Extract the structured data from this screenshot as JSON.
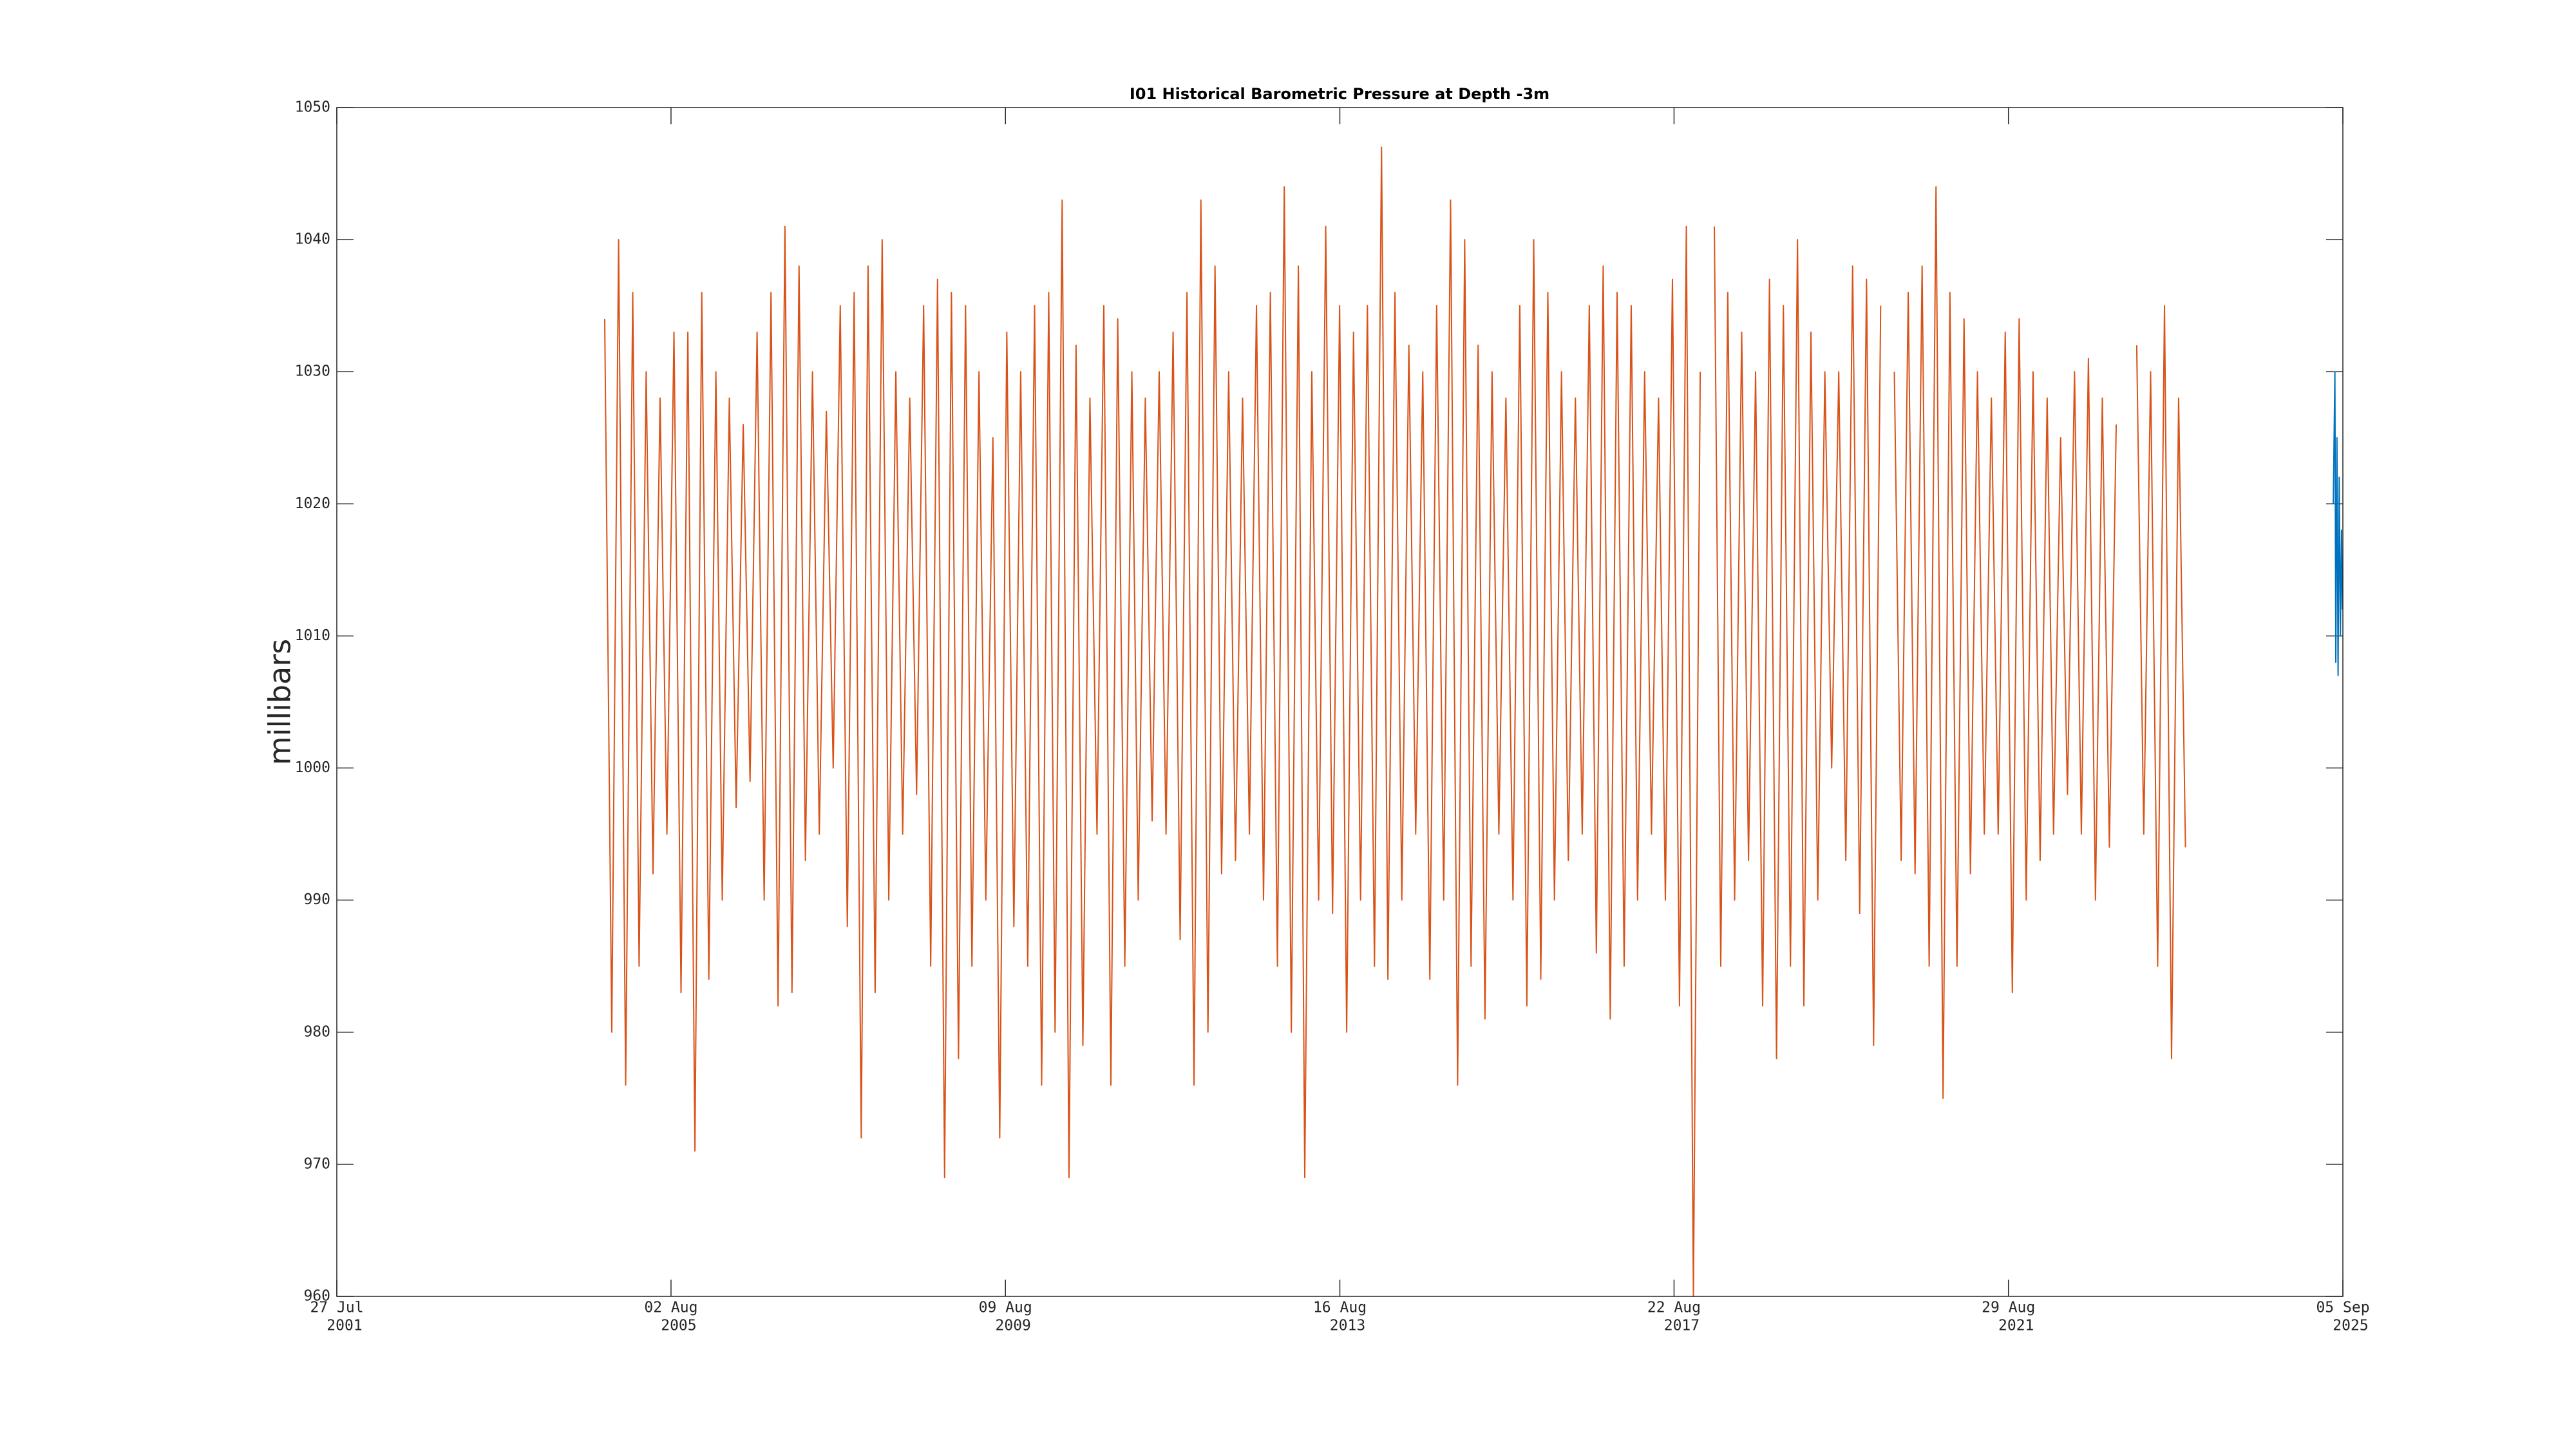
{
  "chart_data": {
    "type": "line",
    "title": "I01 Historical Barometric Pressure at Depth -3m",
    "y_label": "millibars",
    "xlim": [
      "2001-07-27",
      "2025-09-05"
    ],
    "xticks": [
      {
        "value": "2001-07-27",
        "label": [
          "27 Jul",
          "2001"
        ]
      },
      {
        "value": "2005-08-02",
        "label": [
          "02 Aug",
          "2005"
        ]
      },
      {
        "value": "2009-08-09",
        "label": [
          "09 Aug",
          "2009"
        ]
      },
      {
        "value": "2013-08-16",
        "label": [
          "16 Aug",
          "2013"
        ]
      },
      {
        "value": "2017-08-22",
        "label": [
          "22 Aug",
          "2017"
        ]
      },
      {
        "value": "2021-08-29",
        "label": [
          "29 Aug",
          "2021"
        ]
      },
      {
        "value": "2025-09-05",
        "label": [
          "05 Sep",
          "2025"
        ]
      }
    ],
    "ylim": [
      960,
      1050
    ],
    "yticks": [
      960,
      970,
      980,
      990,
      1000,
      1010,
      1020,
      1030,
      1040,
      1050
    ],
    "grid": false,
    "series": [
      {
        "color": "#d95319",
        "x": [
          "2004-10-15",
          "2004-11-15",
          "2004-12-15",
          "2005-01-15",
          "2005-02-15",
          "2005-03-15",
          "2005-04-15",
          "2005-05-15",
          "2005-06-15",
          "2005-07-15",
          "2005-08-15",
          "2005-09-15",
          "2005-10-15",
          "2005-11-15",
          "2005-12-15",
          "2006-01-15",
          "2006-02-15",
          "2006-03-15",
          "2006-04-15",
          "2006-05-15",
          "2006-06-15",
          "2006-07-15",
          "2006-08-15",
          "2006-09-15",
          "2006-10-15",
          "2006-11-15",
          "2006-12-15",
          "2007-01-15",
          "2007-02-15",
          "2007-03-15",
          "2007-04-15",
          "2007-05-15",
          "2007-06-15",
          "2007-07-15",
          "2007-08-15",
          "2007-09-15",
          "2007-10-15",
          "2007-11-15",
          "2007-12-15",
          "2008-01-15",
          "2008-02-15",
          "2008-03-15",
          "2008-04-15",
          "2008-05-15",
          "2008-06-15",
          "2008-07-15",
          "2008-08-15",
          "2008-09-15",
          "2008-10-15",
          "2008-11-15",
          "2008-12-15",
          "2009-01-15",
          "2009-02-15",
          "2009-03-15",
          "2009-04-15",
          "2009-05-15",
          "2009-06-15",
          "2009-07-15",
          "2009-08-15",
          "2009-09-15",
          "2009-10-15",
          "2009-11-15",
          "2009-12-15",
          "2010-01-15",
          "2010-02-15",
          "2010-03-15",
          "2010-04-15",
          "2010-05-15",
          "2010-06-15",
          "2010-07-15",
          "2010-08-15",
          "2010-09-15",
          "2010-10-15",
          "2010-11-15",
          "2010-12-15",
          "2011-01-15",
          "2011-02-15",
          "2011-03-15",
          "2011-04-15",
          "2011-05-15",
          "2011-06-15",
          "2011-07-15",
          "2011-08-15",
          "2011-09-15",
          "2011-10-15",
          "2011-11-15",
          "2011-12-15",
          "2012-01-15",
          "2012-02-15",
          "2012-03-15",
          "2012-04-15",
          "2012-05-15",
          "2012-06-15",
          "2012-07-15",
          "2012-08-15",
          "2012-09-15",
          "2012-10-15",
          "2012-11-15",
          "2012-12-15",
          "2013-01-15",
          "2013-02-15",
          "2013-03-15",
          "2013-04-15",
          "2013-05-15",
          "2013-06-15",
          "2013-07-15",
          "2013-08-15",
          "2013-09-15",
          "2013-10-15",
          "2013-11-15",
          "2013-12-15",
          "2014-01-15",
          "2014-02-15",
          "2014-03-15",
          "2014-04-15",
          "2014-05-15",
          "2014-06-15",
          "2014-07-15",
          "2014-08-15",
          "2014-09-15",
          "2014-10-15",
          "2014-11-15",
          "2014-12-15",
          "2015-01-15",
          "2015-02-15",
          "2015-03-15",
          "2015-04-15",
          "2015-05-15",
          "2015-06-15",
          "2015-07-15",
          "2015-08-15",
          "2015-09-15",
          "2015-10-15",
          "2015-11-15",
          "2015-12-15",
          "2016-01-15",
          "2016-02-15",
          "2016-03-15",
          "2016-04-15",
          "2016-05-15",
          "2016-06-15",
          "2016-07-15",
          "2016-08-15",
          "2016-09-15",
          "2016-10-15",
          "2016-11-15",
          "2016-12-15",
          "2017-01-15",
          "2017-02-15",
          "2017-03-15",
          "2017-04-15",
          "2017-05-15",
          "2017-06-15",
          "2017-07-15",
          "2017-08-15",
          "2017-09-15",
          "2017-10-15",
          "2017-11-15",
          "2017-12-15",
          "2018-01-15",
          "2018-02-15",
          "2018-03-15",
          "2018-04-15",
          "2018-05-15",
          "2018-06-15",
          "2018-07-15",
          "2018-08-15",
          "2018-09-15",
          "2018-10-15",
          "2018-11-15",
          "2018-12-15",
          "2019-01-15",
          "2019-02-15",
          "2019-03-15",
          "2019-04-15",
          "2019-05-15",
          "2019-06-15",
          "2019-07-15",
          "2019-08-15",
          "2019-09-15",
          "2019-10-15",
          "2019-11-15",
          "2019-12-15",
          "2020-01-15",
          "2020-02-15",
          "2020-03-15",
          "2020-04-15",
          "2020-05-15",
          "2020-06-15",
          "2020-07-15",
          "2020-08-15",
          "2020-09-15",
          "2020-10-15",
          "2020-11-15",
          "2020-12-15",
          "2021-01-15",
          "2021-02-15",
          "2021-03-15",
          "2021-04-15",
          "2021-05-15",
          "2021-06-15",
          "2021-07-15",
          "2021-08-15",
          "2021-09-15",
          "2021-10-15",
          "2021-11-15",
          "2021-12-15",
          "2022-01-15",
          "2022-02-15",
          "2022-03-15",
          "2022-04-15",
          "2022-05-15",
          "2022-06-15",
          "2022-07-15",
          "2022-08-15",
          "2022-09-15",
          "2022-10-15",
          "2022-11-15",
          "2022-12-15",
          "2023-01-15",
          "2023-03-15",
          "2023-04-15",
          "2023-05-15",
          "2023-06-15",
          "2023-07-15",
          "2023-08-15",
          "2023-09-15",
          "2023-10-15"
        ],
        "values": [
          1034,
          980,
          1040,
          976,
          1036,
          985,
          1030,
          992,
          1028,
          995,
          1033,
          983,
          1033,
          971,
          1036,
          984,
          1030,
          990,
          1028,
          997,
          1026,
          999,
          1033,
          990,
          1036,
          982,
          1041,
          983,
          1038,
          993,
          1030,
          995,
          1027,
          1000,
          1035,
          988,
          1036,
          972,
          1038,
          983,
          1040,
          990,
          1030,
          995,
          1028,
          998,
          1035,
          985,
          1037,
          969,
          1036,
          978,
          1035,
          985,
          1030,
          990,
          1025,
          972,
          1033,
          988,
          1030,
          985,
          1035,
          976,
          1036,
          980,
          1043,
          969,
          1032,
          979,
          1028,
          995,
          1035,
          976,
          1034,
          985,
          1030,
          990,
          1028,
          996,
          1030,
          995,
          1033,
          987,
          1036,
          976,
          1043,
          980,
          1038,
          992,
          1030,
          993,
          1028,
          995,
          1035,
          990,
          1036,
          985,
          1044,
          980,
          1038,
          969,
          1030,
          990,
          1041,
          989,
          1035,
          980,
          1033,
          990,
          1035,
          985,
          1047,
          984,
          1036,
          990,
          1032,
          995,
          1030,
          984,
          1035,
          990,
          1043,
          976,
          1040,
          985,
          1032,
          981,
          1030,
          995,
          1028,
          990,
          1035,
          982,
          1040,
          984,
          1036,
          990,
          1030,
          993,
          1028,
          995,
          1035,
          986,
          1038,
          981,
          1036,
          985,
          1035,
          990,
          1030,
          995,
          1028,
          990,
          1037,
          982,
          1041,
          960,
          1030,
          null,
          1041,
          985,
          1036,
          990,
          1033,
          993,
          1030,
          982,
          1037,
          978,
          1035,
          985,
          1040,
          982,
          1033,
          990,
          1030,
          1000,
          1030,
          993,
          1038,
          989,
          1037,
          979,
          1035,
          null,
          1030,
          993,
          1036,
          992,
          1038,
          985,
          1044,
          975,
          1036,
          985,
          1034,
          992,
          1030,
          995,
          1028,
          995,
          1033,
          983,
          1034,
          990,
          1030,
          993,
          1028,
          995,
          1025,
          998,
          1030,
          995,
          1031,
          990,
          1028,
          994,
          1026,
          null,
          1032,
          995,
          1030,
          985,
          1035,
          978,
          1028,
          994
        ]
      },
      {
        "color": "#0072bd",
        "x": [
          "2025-07-25",
          "2025-08-01",
          "2025-08-05",
          "2025-08-10",
          "2025-08-15",
          "2025-08-20",
          "2025-08-25",
          "2025-08-30",
          "2025-09-03"
        ],
        "values": [
          1020,
          1030,
          1008,
          1025,
          1007,
          1022,
          1010,
          1018,
          1012
        ]
      }
    ]
  }
}
